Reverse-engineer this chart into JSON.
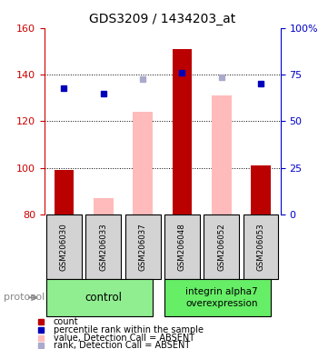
{
  "title": "GDS3209 / 1434203_at",
  "samples": [
    "GSM206030",
    "GSM206033",
    "GSM206037",
    "GSM206048",
    "GSM206052",
    "GSM206053"
  ],
  "ylim": [
    80,
    160
  ],
  "yticks_left": [
    80,
    100,
    120,
    140,
    160
  ],
  "yticks_right": [
    0,
    25,
    50,
    75,
    100
  ],
  "ytick_labels_right": [
    "0",
    "25",
    "50",
    "75",
    "100%"
  ],
  "red_bars": {
    "present": [
      true,
      false,
      false,
      true,
      false,
      true
    ],
    "values": [
      99,
      null,
      null,
      151,
      null,
      101
    ],
    "color": "#bb0000"
  },
  "pink_bars": {
    "present": [
      false,
      true,
      true,
      false,
      true,
      false
    ],
    "values": [
      null,
      87,
      124,
      null,
      131,
      null
    ],
    "color": "#ffbbbb"
  },
  "blue_squares": {
    "present": [
      true,
      true,
      false,
      true,
      false,
      true
    ],
    "values": [
      134,
      132,
      null,
      141,
      null,
      136
    ],
    "color": "#0000bb"
  },
  "lavender_squares": {
    "present": [
      false,
      false,
      true,
      false,
      true,
      false
    ],
    "values": [
      null,
      null,
      138,
      null,
      139,
      null
    ],
    "color": "#aaaacc"
  },
  "sample_box_color": "#d3d3d3",
  "control_group_color": "#90ee90",
  "overexp_group_color": "#66ee66",
  "left_axis_color": "#cc0000",
  "right_axis_color": "#0000cc",
  "bar_width": 0.5,
  "legend_items": [
    {
      "color": "#bb0000",
      "label": "count"
    },
    {
      "color": "#0000bb",
      "label": "percentile rank within the sample"
    },
    {
      "color": "#ffbbbb",
      "label": "value, Detection Call = ABSENT"
    },
    {
      "color": "#aaaacc",
      "label": "rank, Detection Call = ABSENT"
    }
  ]
}
